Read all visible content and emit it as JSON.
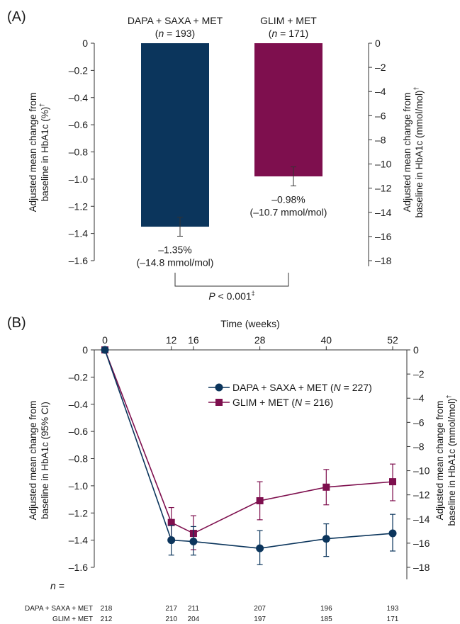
{
  "colors": {
    "dapa": "#0b355c",
    "glim": "#7e0f4e",
    "axis": "#333333"
  },
  "chart_data": [
    {
      "panel_label": "(A)",
      "type": "bar",
      "categories": [
        {
          "name": "DAPA + SAXA + MET",
          "n_prefix": "(",
          "n_symbol": "n",
          "n_suffix": " = 193)"
        },
        {
          "name": "GLIM + MET",
          "n_prefix": "(",
          "n_symbol": "n",
          "n_suffix": " = 171)"
        }
      ],
      "values": [
        -1.35,
        -0.98
      ],
      "error_bars": [
        [
          -1.42,
          -1.28
        ],
        [
          -1.05,
          -0.91
        ]
      ],
      "value_labels": [
        {
          "pct": "–1.35%",
          "mmol": "(–14.8 mmol/mol)"
        },
        {
          "pct": "–0.98%",
          "mmol": "(–10.7 mmol/mol)"
        }
      ],
      "y_left": {
        "label_line1": "Adjusted mean change from",
        "label_line2": "baseline in HbA1c (%)",
        "label_sup": "†",
        "range": [
          -1.6,
          0
        ],
        "ticks": [
          "0",
          "–0.2",
          "–0.4",
          "–0.6",
          "–0.8",
          "–1.0",
          "–1.2",
          "–1.4",
          "–1.6"
        ]
      },
      "y_right": {
        "label_line1": "Adjusted mean change from",
        "label_line2": "baseline in HbA1c (mmol/mol)",
        "label_sup": "†",
        "range": [
          -18,
          0
        ],
        "ticks": [
          "0",
          "–2",
          "–4",
          "–6",
          "–8",
          "–10",
          "–12",
          "–14",
          "–16",
          "–18"
        ]
      },
      "comparison": {
        "p_symbol": "P",
        "p_text": " < 0.001",
        "p_sup": "‡"
      }
    },
    {
      "panel_label": "(B)",
      "type": "line",
      "x_axis": {
        "label": "Time (weeks)",
        "ticks": [
          "0",
          "12",
          "16",
          "28",
          "40",
          "52"
        ],
        "range": [
          0,
          52
        ]
      },
      "x": [
        0,
        12,
        16,
        28,
        40,
        52
      ],
      "series": [
        {
          "name_prefix": "DAPA + SAXA + MET (",
          "name_symbol": "N",
          "name_suffix": " = 227)",
          "marker": "circle",
          "values": [
            0,
            -1.4,
            -1.41,
            -1.46,
            -1.39,
            -1.35
          ],
          "ci_low": [
            0,
            -1.51,
            -1.51,
            -1.58,
            -1.52,
            -1.48
          ],
          "ci_high": [
            0,
            -1.29,
            -1.3,
            -1.33,
            -1.28,
            -1.21
          ]
        },
        {
          "name_prefix": "GLIM + MET (",
          "name_symbol": "N",
          "name_suffix": " = 216)",
          "marker": "square",
          "values": [
            0,
            -1.27,
            -1.35,
            -1.11,
            -1.01,
            -0.97
          ],
          "ci_low": [
            0,
            -1.38,
            -1.47,
            -1.25,
            -1.14,
            -1.11
          ],
          "ci_high": [
            0,
            -1.16,
            -1.22,
            -0.97,
            -0.88,
            -0.84
          ]
        }
      ],
      "y_left": {
        "label_line1": "Adjusted mean change from",
        "label_line2": "baseline in HbA1c (95% CI)",
        "range": [
          -1.6,
          0
        ],
        "ticks": [
          "0",
          "–0.2",
          "–0.4",
          "–0.6",
          "–0.8",
          "–1.0",
          "–1.2",
          "–1.4",
          "–1.6"
        ]
      },
      "y_right": {
        "label_line1": "Adjusted mean change from",
        "label_line2": "baseline in HbA1c (mmol/mol)",
        "label_sup": "†",
        "range": [
          -18,
          0
        ],
        "ticks": [
          "0",
          "–2",
          "–4",
          "–6",
          "–8",
          "–10",
          "–12",
          "–14",
          "–16",
          "–18"
        ]
      },
      "legend_position": "top-right",
      "n_table": {
        "header": "n =",
        "rows": [
          {
            "label": "DAPA + SAXA + MET",
            "values": [
              "218",
              "217",
              "211",
              "207",
              "196",
              "193"
            ]
          },
          {
            "label": "GLIM + MET",
            "values": [
              "212",
              "210",
              "204",
              "197",
              "185",
              "171"
            ]
          }
        ]
      }
    }
  ]
}
